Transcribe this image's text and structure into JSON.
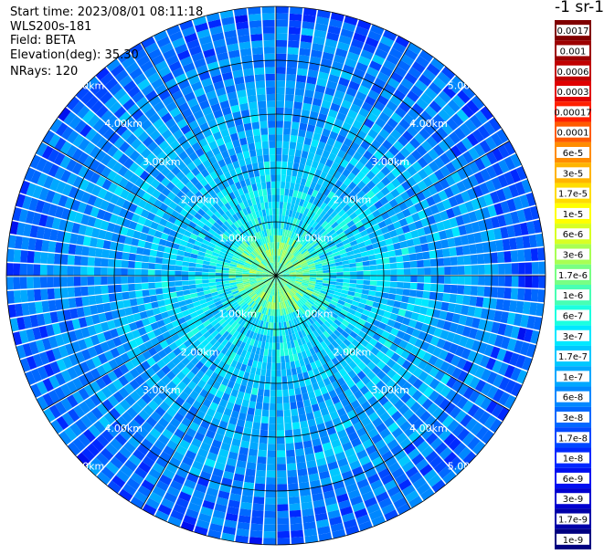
{
  "header": {
    "start_time": "Start time: 2023/08/01 08:11:18",
    "instrument": "WLS200s-181",
    "field": "Field: BETA",
    "elevation": "Elevation(deg): 35.30",
    "nrays": "NRays: 120"
  },
  "colorbar": {
    "unit_label": "-1 sr-1",
    "labels": [
      "0.0017",
      "0.001",
      "0.0006",
      "0.0003",
      "0.00017",
      "0.0001",
      "6e-5",
      "3e-5",
      "1.7e-5",
      "1e-5",
      "6e-6",
      "3e-6",
      "1.7e-6",
      "1e-6",
      "6e-7",
      "3e-7",
      "1.7e-7",
      "1e-7",
      "6e-8",
      "3e-8",
      "1.7e-8",
      "1e-8",
      "6e-9",
      "3e-9",
      "1.7e-9",
      "1e-9"
    ],
    "colors": [
      "#800000",
      "#9c0000",
      "#c00000",
      "#e00000",
      "#ff2000",
      "#ff5a00",
      "#ff8c00",
      "#ffb400",
      "#ffdc00",
      "#ffff00",
      "#d8ff24",
      "#a8ff54",
      "#78ff84",
      "#48ffb4",
      "#1cffe0",
      "#00e8ff",
      "#00c8ff",
      "#00a8ff",
      "#0088ff",
      "#0068ff",
      "#0048ff",
      "#0028ff",
      "#0010f0",
      "#0000d0",
      "#0000a8",
      "#000080"
    ],
    "ticks": [
      "1e-9",
      "1.7e-9",
      "3e-9",
      "6e-9",
      "1e-8",
      "1.7e-8",
      "3e-8",
      "6e-8",
      "1e-7",
      "1.7e-7",
      "3e-7",
      "6e-7",
      "1e-6",
      "1.7e-6",
      "3e-6",
      "6e-6",
      "1e-5",
      "1.7e-5",
      "3e-5",
      "6e-5",
      "0.0001",
      "0.00017",
      "0.0003",
      "0.0006",
      "0.001",
      "0.0017"
    ]
  },
  "chart_data": {
    "type": "heatmap",
    "projection": "polar-ppi",
    "field": "BETA",
    "n_rays": 120,
    "range_max_km": 5.0,
    "range_ring_labels": [
      "1.00km",
      "2.00km",
      "3.00km",
      "4.00km",
      "5.00km"
    ],
    "range_rings_km": [
      1,
      2,
      3,
      4,
      5
    ],
    "radial_lines_every_deg": 30,
    "color_scale": "log",
    "value_range": [
      1e-09,
      0.0017
    ],
    "radial_profile": [
      {
        "range_km": 0.0,
        "value": 1e-06
      },
      {
        "range_km": 0.5,
        "value": 1.7e-06
      },
      {
        "range_km": 1.0,
        "value": 3e-07
      },
      {
        "range_km": 2.0,
        "value": 1.7e-07
      },
      {
        "range_km": 3.0,
        "value": 1e-07
      },
      {
        "range_km": 4.0,
        "value": 6e-08
      },
      {
        "range_km": 5.0,
        "value": 3e-08
      }
    ]
  }
}
